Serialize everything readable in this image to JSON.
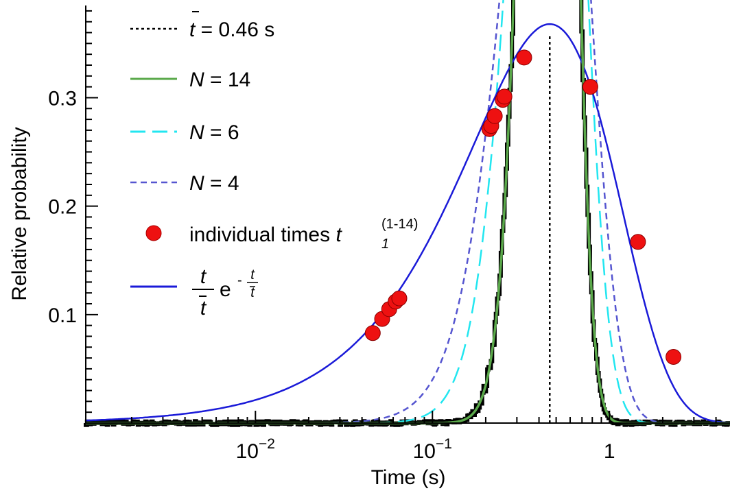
{
  "chart_data": {
    "type": "line",
    "title": "",
    "xlabel": "Time (s)",
    "ylabel": "Relative probability",
    "x_scale": "log",
    "xlim": [
      0.0011,
      4.8
    ],
    "ylim": [
      0,
      0.385
    ],
    "grid": false,
    "legend_position": "top-left",
    "x_major_ticks": [
      {
        "value": 0.01,
        "base": "10",
        "exp": "−2"
      },
      {
        "value": 0.1,
        "base": "10",
        "exp": "−1"
      },
      {
        "value": 1,
        "base": "1",
        "exp": ""
      }
    ],
    "y_ticks": [
      {
        "value": 0.1,
        "label": "0.1"
      },
      {
        "value": 0.2,
        "label": "0.2"
      },
      {
        "value": 0.3,
        "label": "0.3"
      }
    ],
    "mean_time": {
      "value": 0.46,
      "legend_symbol": "t",
      "legend_text": " = 0.46 s",
      "color": "#000000"
    },
    "series": [
      {
        "name": "N = 14",
        "legend_var": "N",
        "legend_rest": " = 14",
        "N": 14,
        "color": "#5aa84a",
        "dash": "solid"
      },
      {
        "name": "N = 6",
        "legend_var": "N",
        "legend_rest": " = 6",
        "N": 6,
        "color": "#22e6f0",
        "dash": "long-dash"
      },
      {
        "name": "N = 4",
        "legend_var": "N",
        "legend_rest": " = 4",
        "N": 4,
        "color": "#5555d0",
        "dash": "short-dash"
      },
      {
        "name": "t/t̄ e^(-t/t̄)",
        "legend_formula": {
          "num": "t",
          "den": "t",
          "e": "e",
          "minus": "-",
          "exp_num": "t",
          "exp_den": "t"
        },
        "N": 1,
        "color": "#1a1ad8",
        "dash": "solid"
      }
    ],
    "histogram": {
      "color": "#000000"
    },
    "individual_times": {
      "legend_text": "individual times ",
      "legend_var": "t",
      "legend_sub": "1",
      "legend_sup": "(1-14)",
      "color": "#ee1111",
      "points": [
        {
          "x": 0.046,
          "y": 0.083
        },
        {
          "x": 0.052,
          "y": 0.096
        },
        {
          "x": 0.057,
          "y": 0.105
        },
        {
          "x": 0.062,
          "y": 0.112
        },
        {
          "x": 0.065,
          "y": 0.115
        },
        {
          "x": 0.21,
          "y": 0.271
        },
        {
          "x": 0.215,
          "y": 0.274
        },
        {
          "x": 0.225,
          "y": 0.283
        },
        {
          "x": 0.25,
          "y": 0.298
        },
        {
          "x": 0.255,
          "y": 0.301
        },
        {
          "x": 0.33,
          "y": 0.337
        },
        {
          "x": 0.78,
          "y": 0.31
        },
        {
          "x": 1.45,
          "y": 0.167
        },
        {
          "x": 2.3,
          "y": 0.061
        }
      ]
    }
  }
}
